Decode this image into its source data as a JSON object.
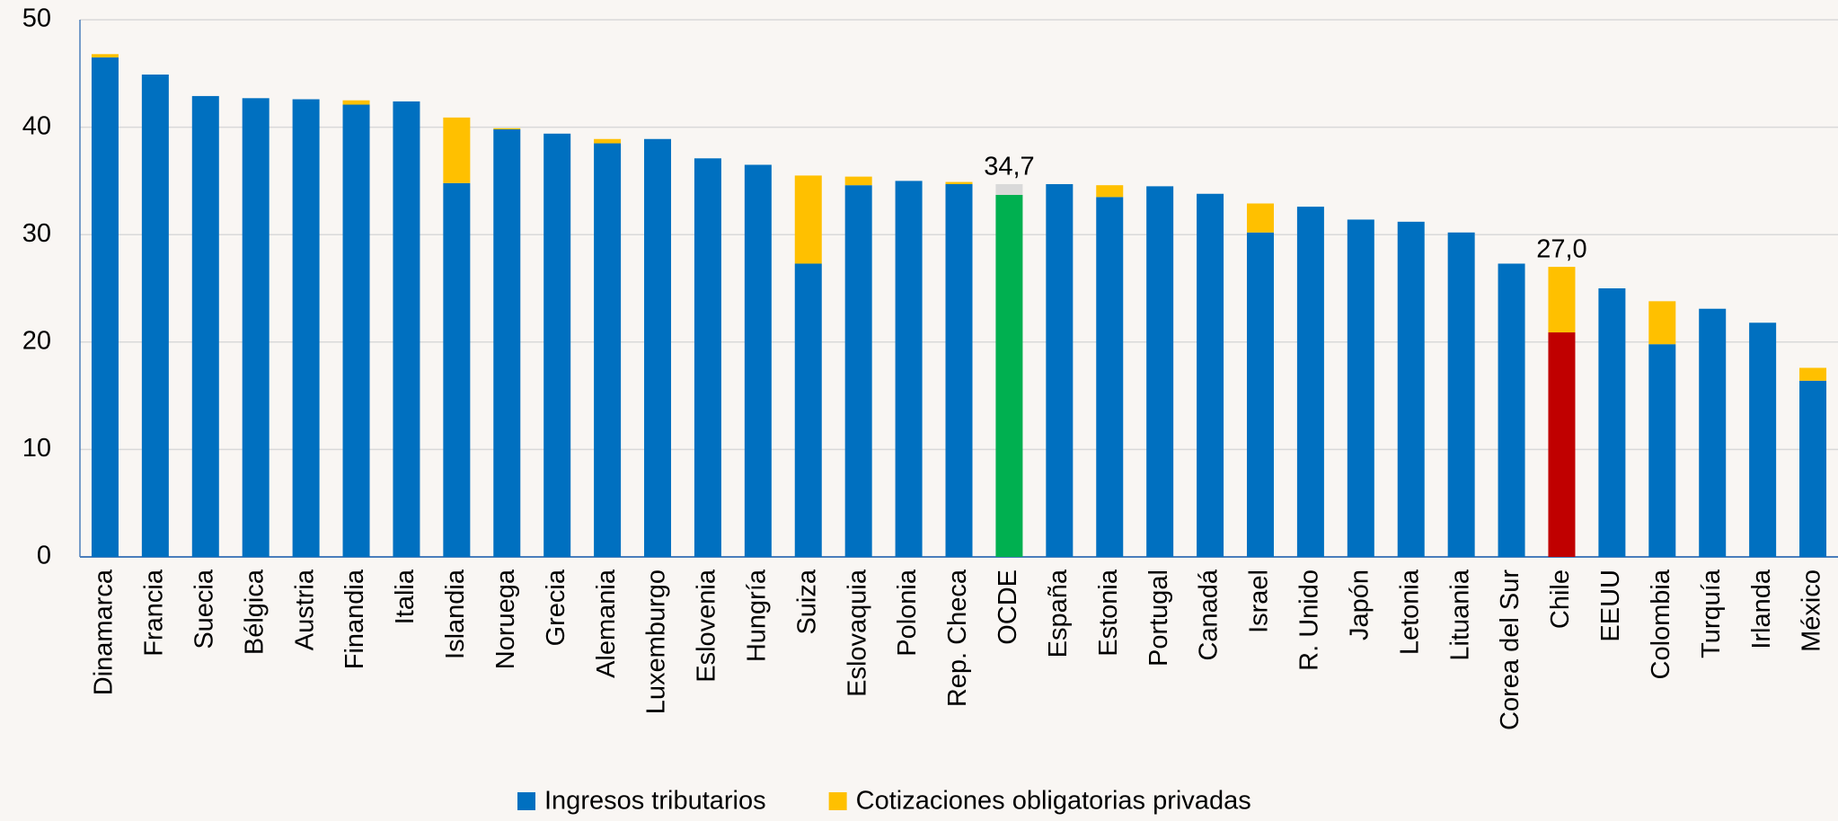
{
  "chart_data": {
    "type": "stacked_bar",
    "categories": [
      "Dinamarca",
      "Francia",
      "Suecia",
      "Bélgica",
      "Austria",
      "Finandia",
      "Italia",
      "Islandia",
      "Noruega",
      "Grecia",
      "Alemania",
      "Luxemburgo",
      "Eslovenia",
      "Hungría",
      "Suiza",
      "Eslovaquia",
      "Polonia",
      "Rep. Checa",
      "OCDE",
      "España",
      "Estonia",
      "Portugal",
      "Canadá",
      "Israel",
      "R. Unido",
      "Japón",
      "Letonia",
      "Lituania",
      "Corea del Sur",
      "Chile",
      "EEUU",
      "Colombia",
      "Turquía",
      "Irlanda",
      "México"
    ],
    "series": [
      {
        "name": "Ingresos tributarios",
        "color": "#0070c0",
        "values": [
          46.5,
          44.9,
          42.9,
          42.7,
          42.6,
          42.1,
          42.4,
          34.8,
          39.8,
          39.4,
          38.5,
          38.9,
          37.1,
          36.5,
          27.3,
          34.6,
          35.0,
          34.7,
          33.7,
          34.7,
          33.5,
          34.5,
          33.8,
          30.2,
          32.6,
          31.4,
          31.2,
          30.2,
          27.3,
          20.9,
          25.0,
          19.8,
          23.1,
          21.8,
          16.4
        ],
        "point_colors": {
          "OCDE": "#00b050",
          "Chile": "#c00000"
        }
      },
      {
        "name": "Cotizaciones obligatorias privadas",
        "color": "#ffc000",
        "values": [
          0.3,
          0,
          0,
          0,
          0,
          0.4,
          0,
          6.1,
          0.1,
          0,
          0.4,
          0,
          0,
          0,
          8.2,
          0.8,
          0,
          0.2,
          1.0,
          0,
          1.1,
          0,
          0,
          2.7,
          0,
          0,
          0,
          0,
          0,
          6.1,
          0,
          4.0,
          0,
          0,
          1.2
        ],
        "point_colors": {
          "OCDE": "#d9d9d9"
        }
      }
    ],
    "annotations": [
      {
        "category": "OCDE",
        "text": "34,7",
        "value": 34.7
      },
      {
        "category": "Chile",
        "text": "27,0",
        "value": 27.0
      }
    ],
    "ylim": [
      0,
      50
    ],
    "yticks": [
      0,
      10,
      20,
      30,
      40,
      50
    ],
    "grid": true,
    "legend": "bottom"
  }
}
